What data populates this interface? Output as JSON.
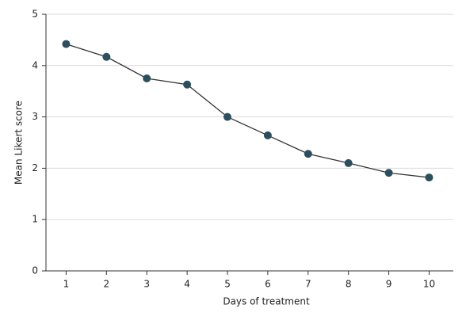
{
  "chart_data": {
    "type": "line",
    "x_label": "Days of treatment",
    "y_label": "Mean Likert score",
    "x": [
      1,
      2,
      3,
      4,
      5,
      6,
      7,
      8,
      9,
      10
    ],
    "series": [
      {
        "color": "#2c4f5f",
        "values": [
          4.42,
          4.17,
          3.75,
          3.63,
          3.0,
          2.64,
          2.28,
          2.1,
          1.91,
          1.82
        ]
      }
    ],
    "xlim": [
      0.5,
      10.6
    ],
    "xticks": [
      1,
      2,
      3,
      4,
      5,
      6,
      7,
      8,
      9,
      10
    ],
    "ylim": [
      0,
      5
    ],
    "yticks": [
      0,
      1,
      2,
      3,
      4,
      5
    ],
    "grid": true
  }
}
